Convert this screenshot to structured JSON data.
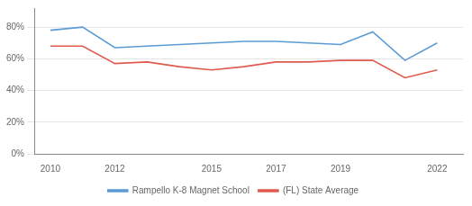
{
  "chart_data": {
    "type": "line",
    "x": [
      2010,
      2011,
      2012,
      2013,
      2014,
      2015,
      2016,
      2017,
      2018,
      2019,
      2020,
      2021,
      2022
    ],
    "series": [
      {
        "name": "Rampello K-8 Magnet School",
        "color": "#5b9bd5",
        "values": [
          0.78,
          0.8,
          0.67,
          0.68,
          0.69,
          0.7,
          0.71,
          0.71,
          0.7,
          0.69,
          0.77,
          0.59,
          0.7
        ]
      },
      {
        "name": "(FL) State Average",
        "color": "#e05a4e",
        "values": [
          0.68,
          0.68,
          0.57,
          0.58,
          0.55,
          0.53,
          0.55,
          0.58,
          0.58,
          0.59,
          0.59,
          0.48,
          0.53
        ]
      }
    ],
    "xlim": [
      2009.5,
      2022.8
    ],
    "xticks": [
      2010,
      2012,
      2015,
      2017,
      2019,
      2022
    ],
    "ylim": [
      0.0,
      0.92
    ],
    "yticks": [
      {
        "value": 0.0,
        "label": "0%"
      },
      {
        "value": 0.2,
        "label": "20%"
      },
      {
        "value": 0.4,
        "label": "40%"
      },
      {
        "value": 0.6,
        "label": "60%"
      },
      {
        "value": 0.8,
        "label": "80%"
      }
    ],
    "grid": "y",
    "legend": "bottom"
  }
}
